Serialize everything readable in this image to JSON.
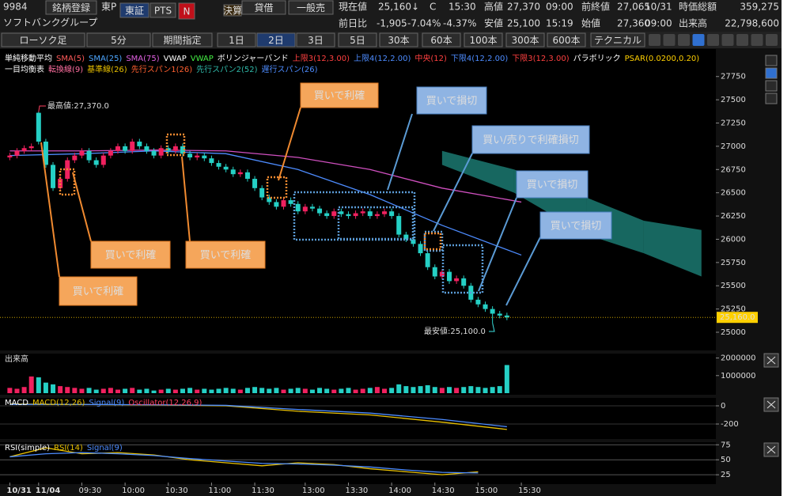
{
  "header": {
    "code": "9984",
    "register": "銘柄登録",
    "market": "東P",
    "exchange": "東証",
    "pts": "PTS",
    "news": "N",
    "earnings": "決算",
    "margin": "貸借",
    "short": "一般売",
    "name": "ソフトバンクグループ",
    "quote": {
      "price_label": "現在値",
      "price": "25,160",
      "arrow": "↓",
      "flag": "C",
      "time": "15:30",
      "high_label": "高値",
      "high": "27,370",
      "high_time": "09:00",
      "prev_label": "前終値",
      "prev": "27,065",
      "prev_date": "10/31",
      "cap_label": "時価総額",
      "cap": "359,275",
      "change_label": "前日比",
      "change": "-1,905",
      "change_pct": "-7.04%",
      "alt_pct": "-4.37%",
      "low_label": "安値",
      "low": "25,100",
      "low_time": "15:19",
      "open_label": "始値",
      "open": "27,360",
      "open_time": "09:00",
      "volume_label": "出来高",
      "volume": "22,798,600"
    }
  },
  "toolbar": {
    "chart_type": "ローソク足",
    "interval": "5分",
    "period": "期間指定",
    "ranges": [
      "1日",
      "2日",
      "3日",
      "5日",
      "30本",
      "60本",
      "100本",
      "300本",
      "600本"
    ],
    "technical": "テクニカル"
  },
  "chart_data": [
    {
      "type": "candlestick",
      "legend": [
        [
          {
            "text": "単純移動平均",
            "color": "#ffffff"
          },
          {
            "text": "SMA(5)",
            "color": "#ff5a5a"
          },
          {
            "text": "SMA(25)",
            "color": "#4da6ff"
          },
          {
            "text": "SMA(75)",
            "color": "#e060e0"
          },
          {
            "text": "VWAP",
            "color": "#ffffff"
          },
          {
            "text": "VWAP",
            "color": "#44ee44"
          },
          {
            "text": "ボリンジャーバンド",
            "color": "#ffffff"
          },
          {
            "text": "上限3(12,3.00)",
            "color": "#ff4040"
          },
          {
            "text": "上限4(12,2.00)",
            "color": "#4d8cff"
          },
          {
            "text": "中央(12)",
            "color": "#ff4040"
          },
          {
            "text": "下限4(12,2.00)",
            "color": "#4d8cff"
          },
          {
            "text": "下限3(12,3.00)",
            "color": "#ff4040"
          },
          {
            "text": "パラボリック",
            "color": "#ffffff"
          },
          {
            "text": "PSAR(0.0200,0.20)",
            "color": "#ffd000"
          }
        ],
        [
          {
            "text": "一目均衡表",
            "color": "#ffffff"
          },
          {
            "text": "転換線(9)",
            "color": "#ff6fa0"
          },
          {
            "text": "基準線(26)",
            "color": "#e8c000"
          },
          {
            "text": "先行スパン1(26)",
            "color": "#ff6030"
          },
          {
            "text": "先行スパン2(52)",
            "color": "#2fb8a8"
          },
          {
            "text": "遅行スパン(26)",
            "color": "#4d8cff"
          }
        ]
      ],
      "xlim": [
        -0.7,
        98
      ],
      "ylim": [
        24830,
        28020
      ],
      "yticks": [
        25000,
        25250,
        25500,
        25750,
        26000,
        26250,
        26500,
        26750,
        27000,
        27250,
        27500,
        27750
      ],
      "up_color": "#f0215f",
      "down_color": "#25d0c5",
      "open": [
        26880,
        26900,
        26950,
        26980,
        27360,
        27050,
        26800,
        26550,
        26650,
        26850,
        26900,
        26950,
        26850,
        26800,
        26900,
        26950,
        27000,
        26950,
        27050,
        27000,
        26950,
        26900,
        26980,
        26950,
        27000,
        26920,
        26880,
        26900,
        26870,
        26820,
        26780,
        26750,
        26700,
        26720,
        26650,
        26550,
        26450,
        26400,
        26350,
        26420,
        26380,
        26300,
        26350,
        26330,
        26280,
        26250,
        26300,
        26270,
        26250,
        26280,
        26300,
        26250,
        26270,
        26300,
        26250,
        26050,
        26000,
        25950,
        25850,
        25700,
        25600,
        25650,
        25550,
        25580,
        25500,
        25350,
        25300,
        25250,
        25200,
        25180
      ],
      "high": [
        26930,
        26980,
        27010,
        27030,
        27370,
        27080,
        26830,
        26680,
        26880,
        26930,
        26980,
        26980,
        26880,
        26930,
        26980,
        27030,
        27030,
        27080,
        27080,
        27030,
        26980,
        27010,
        27010,
        27030,
        27030,
        26950,
        26930,
        26930,
        26900,
        26850,
        26810,
        26780,
        26750,
        26750,
        26680,
        26580,
        26480,
        26430,
        26450,
        26450,
        26410,
        26380,
        26380,
        26360,
        26310,
        26330,
        26330,
        26300,
        26310,
        26330,
        26330,
        26300,
        26330,
        26330,
        26280,
        26080,
        26030,
        25980,
        25880,
        25730,
        25680,
        25680,
        25610,
        25610,
        25530,
        25380,
        25330,
        25280,
        25230,
        25210
      ],
      "low": [
        26850,
        26870,
        26920,
        26950,
        27020,
        26770,
        26520,
        26520,
        26620,
        26820,
        26870,
        26820,
        26770,
        26770,
        26870,
        26920,
        26920,
        26920,
        26970,
        26920,
        26870,
        26870,
        26920,
        26920,
        26890,
        26850,
        26850,
        26840,
        26790,
        26750,
        26720,
        26670,
        26670,
        26620,
        26520,
        26420,
        26370,
        26320,
        26320,
        26350,
        26270,
        26270,
        26300,
        26250,
        26220,
        26220,
        26240,
        26220,
        26220,
        26250,
        26220,
        26220,
        26240,
        26220,
        26020,
        25970,
        25920,
        25820,
        25670,
        25570,
        25570,
        25520,
        25520,
        25470,
        25320,
        25270,
        25220,
        25100,
        25150,
        25130
      ],
      "close": [
        26900,
        26950,
        26980,
        27000,
        27050,
        26800,
        26550,
        26650,
        26850,
        26900,
        26950,
        26850,
        26800,
        26900,
        26950,
        27000,
        26950,
        27050,
        27000,
        26950,
        26900,
        26980,
        26950,
        27000,
        26920,
        26880,
        26900,
        26870,
        26820,
        26780,
        26750,
        26700,
        26720,
        26650,
        26550,
        26450,
        26400,
        26350,
        26420,
        26380,
        26300,
        26350,
        26330,
        26280,
        26250,
        26300,
        26270,
        26250,
        26280,
        26300,
        26250,
        26270,
        26300,
        26250,
        26050,
        26000,
        25950,
        25850,
        25700,
        25600,
        25650,
        25550,
        25580,
        25500,
        25350,
        25300,
        25250,
        25200,
        25180,
        25160
      ],
      "lines": [
        {
          "color": "#4d8cff",
          "x": [
            0,
            10,
            20,
            30,
            40,
            50,
            60,
            71
          ],
          "values": [
            26900,
            26920,
            26950,
            26920,
            26750,
            26480,
            26150,
            25830
          ]
        },
        {
          "color": "#d050c0",
          "x": [
            0,
            10,
            20,
            30,
            40,
            50,
            60,
            71
          ],
          "values": [
            26950,
            26950,
            26960,
            26950,
            26880,
            26750,
            26550,
            26400
          ]
        }
      ],
      "cloud": {
        "color": "#1f8a80",
        "x": [
          60,
          70,
          80,
          88,
          96
        ],
        "top": [
          26950,
          26750,
          26450,
          26200,
          26100
        ],
        "bottom": [
          26800,
          26500,
          26050,
          25850,
          25600
        ]
      },
      "last_price": {
        "value": 25160,
        "label": "25,160.0"
      },
      "annotations": [
        "最高値:27,370.0",
        "最安値:25,100.0"
      ],
      "callouts": [
        "買いで利確",
        "買いで損切",
        "買い/売りで利確損切",
        "買いで損切",
        "買いで損切",
        "買いで利確",
        "買いで利確",
        "買いで利確"
      ]
    },
    {
      "type": "bar",
      "title": "出来高",
      "xlim": [
        -0.7,
        98
      ],
      "ylim": [
        0,
        2250000
      ],
      "yticks": [
        2000000,
        1000000
      ],
      "values": [
        300000,
        250000,
        350000,
        950000,
        900000,
        600000,
        500000,
        400000,
        350000,
        300000,
        250000,
        300000,
        200000,
        250000,
        300000,
        200000,
        250000,
        300000,
        200000,
        250000,
        150000,
        200000,
        250000,
        200000,
        250000,
        300000,
        200000,
        250000,
        200000,
        250000,
        300000,
        250000,
        200000,
        300000,
        350000,
        300000,
        250000,
        300000,
        200000,
        250000,
        300000,
        250000,
        200000,
        300000,
        250000,
        200000,
        250000,
        300000,
        200000,
        250000,
        300000,
        350000,
        250000,
        300000,
        500000,
        400000,
        350000,
        400000,
        450000,
        350000,
        300000,
        350000,
        300000,
        350000,
        400000,
        350000,
        300000,
        350000,
        400000,
        1600000
      ]
    },
    {
      "type": "line",
      "legend": [
        {
          "text": "MACD",
          "color": "#ffffff"
        },
        {
          "text": "MACD(12,26)",
          "color": "#e8c000"
        },
        {
          "text": "Signal(9)",
          "color": "#4d8cff"
        },
        {
          "text": "Oscillator(12,26,9)",
          "color": "#ff4060"
        }
      ],
      "xlim": [
        -0.7,
        98
      ],
      "ylim": [
        -348,
        87
      ],
      "yticks": [
        0,
        -200
      ],
      "series": [
        {
          "color": "#e8c000",
          "x": [
            0,
            10,
            20,
            30,
            40,
            50,
            60,
            69
          ],
          "values": [
            20,
            15,
            10,
            0,
            -60,
            -100,
            -180,
            -260
          ]
        },
        {
          "color": "#4d8cff",
          "x": [
            0,
            10,
            20,
            30,
            40,
            50,
            60,
            69
          ],
          "values": [
            15,
            15,
            12,
            5,
            -40,
            -80,
            -150,
            -230
          ]
        }
      ]
    },
    {
      "type": "line",
      "legend": [
        {
          "text": "RSI(simple)",
          "color": "#ffffff"
        },
        {
          "text": "RSI(14)",
          "color": "#e8c000"
        },
        {
          "text": "Signal(9)",
          "color": "#4d8cff"
        }
      ],
      "xlim": [
        -0.7,
        98
      ],
      "ylim": [
        12,
        78
      ],
      "yticks": [
        75,
        50,
        25
      ],
      "grid": true,
      "series": [
        {
          "color": "#e8c000",
          "x": [
            0,
            5,
            10,
            15,
            20,
            25,
            30,
            35,
            40,
            45,
            50,
            55,
            60,
            65
          ],
          "values": [
            55,
            70,
            60,
            62,
            58,
            50,
            45,
            40,
            45,
            42,
            35,
            30,
            25,
            30
          ]
        },
        {
          "color": "#4d8cff",
          "x": [
            0,
            5,
            10,
            15,
            20,
            25,
            30,
            35,
            40,
            45,
            50,
            55,
            60,
            65
          ],
          "values": [
            55,
            60,
            62,
            60,
            57,
            52,
            48,
            44,
            43,
            41,
            38,
            33,
            29,
            28
          ]
        }
      ],
      "xticks": [
        {
          "value": 0,
          "label": "10/31"
        },
        {
          "value": 4,
          "label": "11/04"
        },
        {
          "value": 10,
          "label": "09:30"
        },
        {
          "value": 16,
          "label": "10:00"
        },
        {
          "value": 22,
          "label": "10:30"
        },
        {
          "value": 28,
          "label": "11:00"
        },
        {
          "value": 34,
          "label": "11:30"
        },
        {
          "value": 41,
          "label": "13:00"
        },
        {
          "value": 47,
          "label": "13:30"
        },
        {
          "value": 53,
          "label": "14:00"
        },
        {
          "value": 59,
          "label": "14:30"
        },
        {
          "value": 65,
          "label": "15:00"
        },
        {
          "value": 71,
          "label": "15:30"
        }
      ]
    }
  ]
}
